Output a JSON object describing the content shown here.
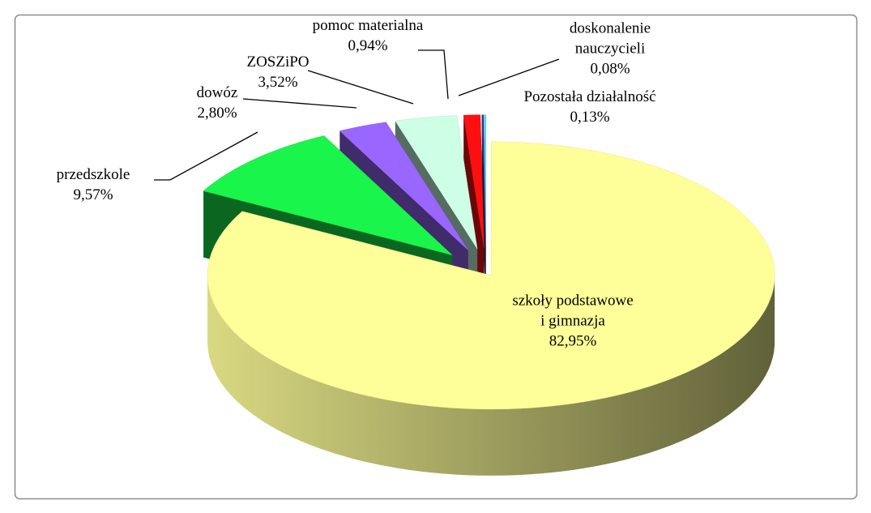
{
  "chart_data": {
    "type": "pie",
    "categories": [
      "szkoły podstawowe\ni gimnazja",
      "przedszkole",
      "dowóz",
      "ZOSZiPO",
      "pomoc materialna",
      "doskonalenie\nnauczycieli",
      "Pozostała działalność"
    ],
    "values": [
      82.95,
      9.57,
      2.8,
      3.52,
      0.94,
      0.08,
      0.13
    ],
    "value_labels": [
      "82,95%",
      "9,57%",
      "2,80%",
      "3,52%",
      "0,94%",
      "0,08%",
      "0,13%"
    ],
    "colors": [
      "#ffff99",
      "#19f54a",
      "#9966ff",
      "#ccffe6",
      "#ff1010",
      "#24407f",
      "#66ccff"
    ]
  }
}
